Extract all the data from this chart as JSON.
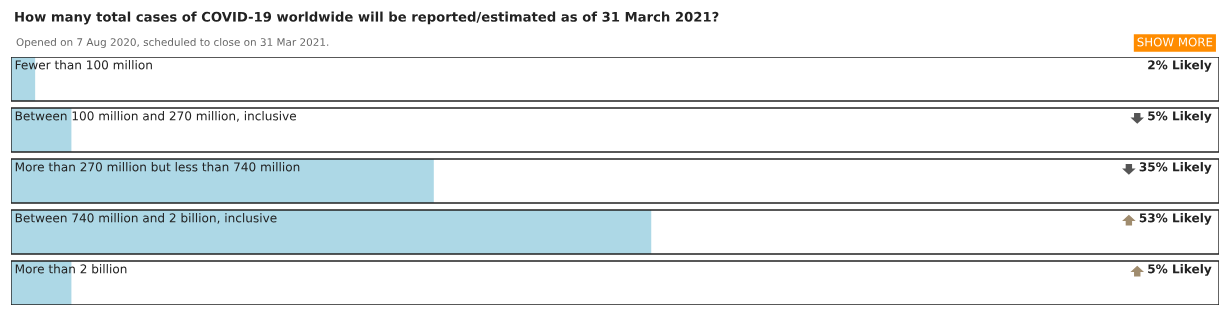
{
  "chart_data": {
    "type": "bar",
    "orientation": "horizontal",
    "title": "How many total cases of COVID-19 worldwide will be reported/estimated as of 31 March 2021?",
    "subtitle": "Opened on 7 Aug 2020, scheduled to close on 31 Mar 2021.",
    "annotations": [
      "SHOW MORE"
    ],
    "categories": [
      "Fewer than 100 million",
      "Between 100 million and 270 million, inclusive",
      "More than 270 million but less than 740 million",
      "Between 740 million and 2 billion, inclusive",
      "More than 2 billion"
    ],
    "values": [
      2,
      5,
      35,
      53,
      5
    ],
    "value_labels": [
      "2% Likely",
      "5% Likely",
      "35% Likely",
      "53% Likely",
      "5% Likely"
    ],
    "color": "#add8e6",
    "xlim": [
      0,
      100
    ]
  }
}
